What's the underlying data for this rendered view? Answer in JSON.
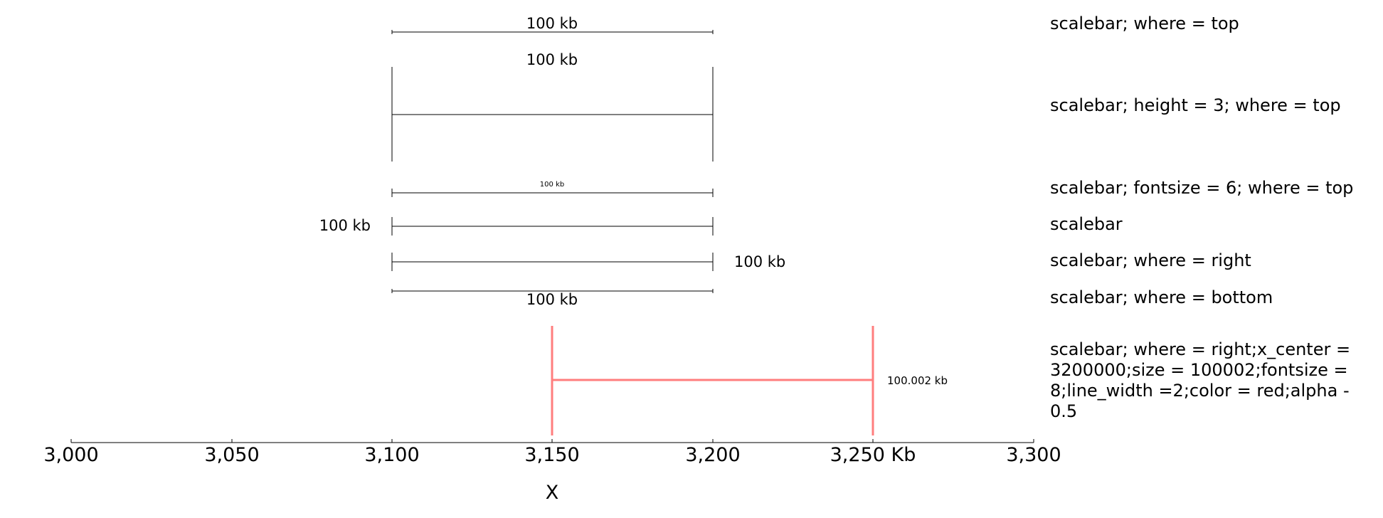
{
  "axis": {
    "xlabel": "X",
    "unit": "Kb",
    "range": [
      3000,
      3300
    ],
    "ticks": [
      {
        "value": 3000,
        "label": "3,000"
      },
      {
        "value": 3050,
        "label": "3,050"
      },
      {
        "value": 3100,
        "label": "3,100"
      },
      {
        "value": 3150,
        "label": "3,150"
      },
      {
        "value": 3200,
        "label": "3,200"
      },
      {
        "value": 3250,
        "label": "3,250 Kb"
      },
      {
        "value": 3300,
        "label": "3,300"
      }
    ]
  },
  "scalebars": [
    {
      "label": "100 kb",
      "description": "scalebar; where = top",
      "start": 3100,
      "end": 3200,
      "where": "top",
      "height": 1,
      "fontsize": 14,
      "color": "#000000",
      "alpha": 1
    },
    {
      "label": "100 kb",
      "description": "scalebar; height = 3; where = top",
      "start": 3100,
      "end": 3200,
      "where": "top",
      "height": 3,
      "fontsize": 14,
      "color": "#000000",
      "alpha": 1
    },
    {
      "label": "100 kb",
      "description": "scalebar; fontsize = 6; where = top",
      "start": 3100,
      "end": 3200,
      "where": "top",
      "height": 1,
      "fontsize": 6,
      "color": "#000000",
      "alpha": 1
    },
    {
      "label": "100 kb",
      "description": "scalebar",
      "start": 3100,
      "end": 3200,
      "where": "left",
      "height": 1,
      "fontsize": 14,
      "color": "#000000",
      "alpha": 1
    },
    {
      "label": "100 kb",
      "description": "scalebar; where = right",
      "start": 3100,
      "end": 3200,
      "where": "right",
      "height": 1,
      "fontsize": 14,
      "color": "#000000",
      "alpha": 1
    },
    {
      "label": "100 kb",
      "description": "scalebar; where = bottom",
      "start": 3100,
      "end": 3200,
      "where": "bottom",
      "height": 1,
      "fontsize": 14,
      "color": "#000000",
      "alpha": 1
    },
    {
      "label": "100.002 kb",
      "description": "scalebar; where = right;x_center = 3200000;size = 100002;fontsize = 8;line_width =2;color = red;alpha - 0.5",
      "start": 3150,
      "end": 3250,
      "where": "right",
      "height": 1,
      "fontsize": 8,
      "color": "#ff0000",
      "alpha": 0.5
    }
  ]
}
